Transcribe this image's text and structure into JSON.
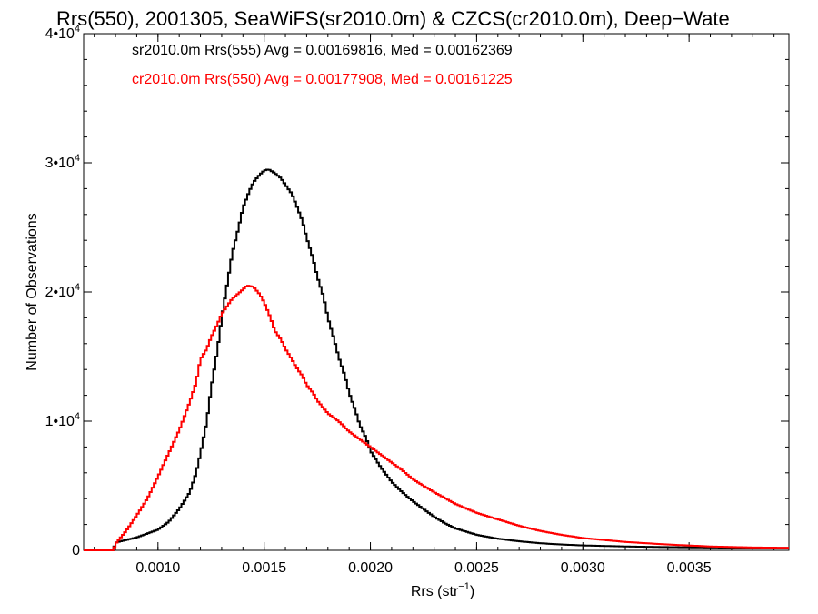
{
  "chart_data": {
    "type": "line",
    "step": true,
    "title": "Rrs(550), 2001305, SeaWiFS(sr2010.0m) & CZCS(cr2010.0m), Deep−Wate",
    "xlabel": "Rrs (str",
    "xlabel_sup": "−1",
    "xlabel_end": ")",
    "ylabel": "Number of Observations",
    "xlim": [
      0.00065,
      0.00397
    ],
    "ylim": [
      0,
      40000
    ],
    "x_ticks": [
      0.001,
      0.0015,
      0.002,
      0.0025,
      0.003,
      0.0035
    ],
    "x_tick_labels": [
      "0.0010",
      "0.0015",
      "0.0020",
      "0.0025",
      "0.0030",
      "0.0035"
    ],
    "y_ticks": [
      0,
      10000,
      20000,
      30000,
      40000
    ],
    "y_tick_labels": [
      {
        "base": "0",
        "exp": ""
      },
      {
        "base": "1•10",
        "exp": "4"
      },
      {
        "base": "2•10",
        "exp": "4"
      },
      {
        "base": "3•10",
        "exp": "4"
      },
      {
        "base": "4•10",
        "exp": "4"
      }
    ],
    "grid": false,
    "legend_position": "top-left",
    "series": [
      {
        "name": "sr2010.0m Rrs(555) Avg = 0.00169816, Med = 0.00162369",
        "color": "#000000",
        "points": [
          [
            0.00065,
            0
          ],
          [
            0.00079,
            0
          ],
          [
            0.0008,
            600
          ],
          [
            0.00085,
            800
          ],
          [
            0.0009,
            1000
          ],
          [
            0.00095,
            1300
          ],
          [
            0.001,
            1600
          ],
          [
            0.00105,
            2200
          ],
          [
            0.0011,
            3200
          ],
          [
            0.00115,
            4500
          ],
          [
            0.00118,
            6000
          ],
          [
            0.0012,
            7500
          ],
          [
            0.00123,
            10000
          ],
          [
            0.00125,
            12500
          ],
          [
            0.00128,
            15500
          ],
          [
            0.0013,
            18000
          ],
          [
            0.00133,
            21000
          ],
          [
            0.00135,
            23000
          ],
          [
            0.00138,
            25000
          ],
          [
            0.0014,
            26500
          ],
          [
            0.00143,
            27800
          ],
          [
            0.00145,
            28500
          ],
          [
            0.00148,
            29100
          ],
          [
            0.0015,
            29400
          ],
          [
            0.00152,
            29500
          ],
          [
            0.00155,
            29200
          ],
          [
            0.00158,
            28800
          ],
          [
            0.0016,
            28300
          ],
          [
            0.00163,
            27600
          ],
          [
            0.00165,
            26800
          ],
          [
            0.00168,
            25500
          ],
          [
            0.0017,
            24200
          ],
          [
            0.00173,
            22600
          ],
          [
            0.00175,
            21200
          ],
          [
            0.00178,
            19600
          ],
          [
            0.0018,
            18000
          ],
          [
            0.00183,
            16300
          ],
          [
            0.00185,
            15000
          ],
          [
            0.00188,
            13500
          ],
          [
            0.0019,
            12200
          ],
          [
            0.00193,
            10800
          ],
          [
            0.00195,
            9700
          ],
          [
            0.00198,
            8700
          ],
          [
            0.002,
            7700
          ],
          [
            0.00205,
            6400
          ],
          [
            0.0021,
            5300
          ],
          [
            0.00215,
            4500
          ],
          [
            0.0022,
            3800
          ],
          [
            0.00225,
            3200
          ],
          [
            0.0023,
            2600
          ],
          [
            0.00235,
            2100
          ],
          [
            0.0024,
            1700
          ],
          [
            0.0025,
            1200
          ],
          [
            0.0026,
            900
          ],
          [
            0.0027,
            700
          ],
          [
            0.0028,
            550
          ],
          [
            0.0029,
            450
          ],
          [
            0.003,
            380
          ],
          [
            0.0032,
            300
          ],
          [
            0.0034,
            250
          ],
          [
            0.0036,
            220
          ],
          [
            0.0038,
            200
          ],
          [
            0.00397,
            180
          ]
        ]
      },
      {
        "name": "cr2010.0m Rrs(550) Avg = 0.00177908, Med = 0.00161225",
        "color": "#ff0000",
        "points": [
          [
            0.00065,
            0
          ],
          [
            0.00079,
            0
          ],
          [
            0.0008,
            500
          ],
          [
            0.00085,
            1500
          ],
          [
            0.0009,
            2700
          ],
          [
            0.00095,
            4000
          ],
          [
            0.001,
            5700
          ],
          [
            0.00105,
            7500
          ],
          [
            0.0011,
            9300
          ],
          [
            0.00115,
            11500
          ],
          [
            0.00118,
            13000
          ],
          [
            0.0012,
            14800
          ],
          [
            0.00123,
            15600
          ],
          [
            0.00125,
            16500
          ],
          [
            0.00128,
            17500
          ],
          [
            0.0013,
            18300
          ],
          [
            0.00133,
            19000
          ],
          [
            0.00135,
            19500
          ],
          [
            0.00138,
            19900
          ],
          [
            0.0014,
            20200
          ],
          [
            0.00142,
            20500
          ],
          [
            0.00145,
            20400
          ],
          [
            0.00148,
            19800
          ],
          [
            0.0015,
            19200
          ],
          [
            0.00153,
            18000
          ],
          [
            0.00155,
            17000
          ],
          [
            0.00158,
            16300
          ],
          [
            0.0016,
            15600
          ],
          [
            0.00163,
            14800
          ],
          [
            0.00165,
            14200
          ],
          [
            0.00168,
            13500
          ],
          [
            0.0017,
            12800
          ],
          [
            0.00173,
            12200
          ],
          [
            0.00175,
            11600
          ],
          [
            0.00178,
            11000
          ],
          [
            0.0018,
            10600
          ],
          [
            0.00185,
            10000
          ],
          [
            0.0019,
            9200
          ],
          [
            0.00195,
            8600
          ],
          [
            0.002,
            8000
          ],
          [
            0.00205,
            7400
          ],
          [
            0.0021,
            6800
          ],
          [
            0.00215,
            6200
          ],
          [
            0.0022,
            5500
          ],
          [
            0.0023,
            4500
          ],
          [
            0.0024,
            3600
          ],
          [
            0.0025,
            2900
          ],
          [
            0.0026,
            2400
          ],
          [
            0.0027,
            1900
          ],
          [
            0.0028,
            1500
          ],
          [
            0.0029,
            1200
          ],
          [
            0.003,
            950
          ],
          [
            0.0032,
            650
          ],
          [
            0.0034,
            450
          ],
          [
            0.0036,
            300
          ],
          [
            0.0038,
            220
          ],
          [
            0.00397,
            200
          ]
        ]
      }
    ]
  }
}
